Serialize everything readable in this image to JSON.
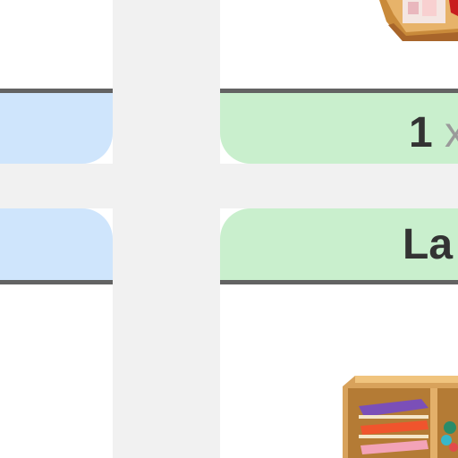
{
  "cards": {
    "top_right": {
      "number": "1",
      "symbol": "x"
    },
    "bottom_right": {
      "text": "La"
    }
  },
  "images": {
    "top_right": "wooden-crate-with-art-supplies",
    "bottom_right": "wooden-paper-cubby-with-colored-paper"
  },
  "colors": {
    "blue_card": "#cfe5fc",
    "green_card": "#c9efcd",
    "border": "#636363",
    "gutter": "#f1f1f1"
  }
}
